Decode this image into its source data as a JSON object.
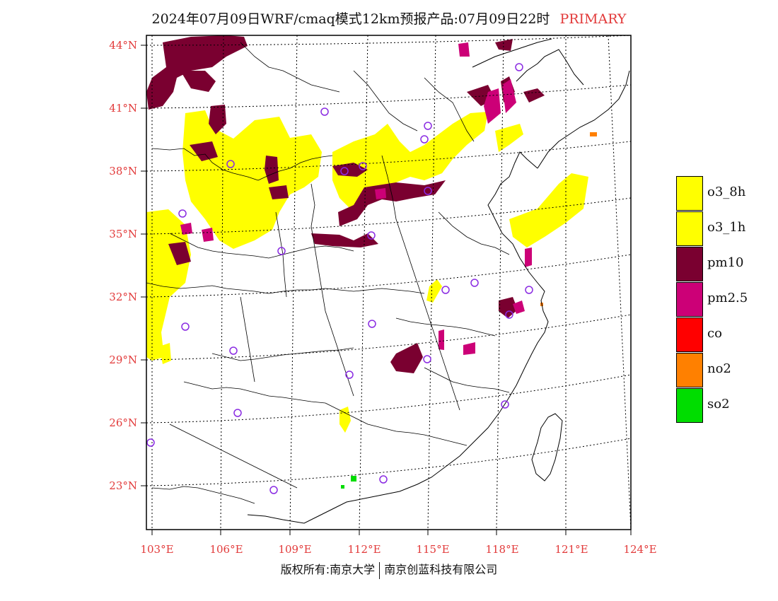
{
  "header": {
    "title": "2024年07月09日WRF/cmaq模式12km预报产品:07月09日22时",
    "tag": "PRIMARY"
  },
  "map": {
    "lat_labels": [
      "44°N",
      "41°N",
      "38°N",
      "35°N",
      "32°N",
      "29°N",
      "26°N",
      "23°N"
    ],
    "lon_labels": [
      "103°E",
      "106°E",
      "109°E",
      "112°E",
      "115°E",
      "118°E",
      "121°E",
      "124°E"
    ]
  },
  "legend": {
    "items": [
      {
        "label": "o3_8h",
        "color": "#ffff00"
      },
      {
        "label": "o3_1h",
        "color": "#ffff00"
      },
      {
        "label": "pm10",
        "color": "#7a0030"
      },
      {
        "label": "pm2.5",
        "color": "#cc0077"
      },
      {
        "label": "co",
        "color": "#ff0000"
      },
      {
        "label": "no2",
        "color": "#ff8000"
      },
      {
        "label": "so2",
        "color": "#00dd00"
      }
    ]
  },
  "footer": {
    "copyright_left": "版权所有:南京大学",
    "copyright_right": "南京创蓝科技有限公司"
  }
}
